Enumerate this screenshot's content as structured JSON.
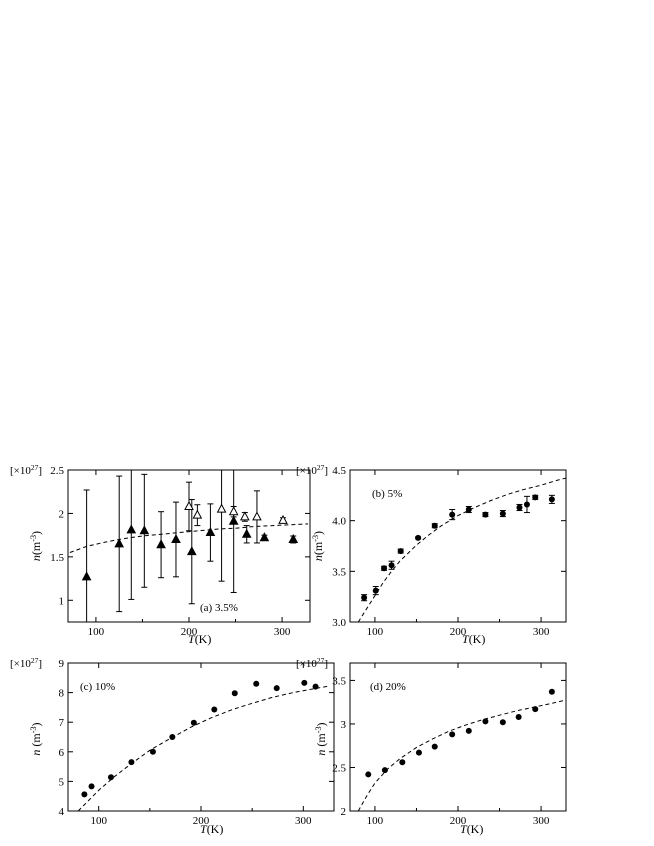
{
  "chart_data": [
    {
      "id": "a",
      "type": "scatter",
      "panel_label": "(a) 3.5%",
      "multiplier": "[×10",
      "multiplier_exp": "27",
      "multiplier_end": "]",
      "ylabel_main": "n",
      "ylabel_unit": "(m",
      "ylabel_exp": "-3",
      "ylabel_end": ")",
      "xlabel_main": "T",
      "xlabel_unit": "(K)",
      "xlim": [
        70,
        330
      ],
      "ylim": [
        0.75,
        2.5
      ],
      "xticks": [
        100,
        200,
        300
      ],
      "xtick_labels": [
        "100",
        "200",
        "300"
      ],
      "yticks": [
        1,
        1.5,
        2,
        2.5
      ],
      "ytick_labels": [
        "1",
        "1.5",
        "2",
        "2.5"
      ],
      "series": [
        {
          "marker": "triangle-filled",
          "x": [
            90,
            125,
            138,
            152,
            170,
            186,
            203,
            223,
            248,
            262,
            281,
            312
          ],
          "y": [
            1.27,
            1.65,
            1.81,
            1.8,
            1.64,
            1.7,
            1.56,
            1.78,
            1.91,
            1.76,
            1.72,
            1.7
          ],
          "err": [
            1.0,
            0.78,
            0.8,
            0.65,
            0.38,
            0.43,
            0.6,
            0.33,
            0.82,
            0.1,
            0.03,
            0.04
          ]
        },
        {
          "marker": "triangle-open",
          "x": [
            200,
            209,
            235,
            248,
            260,
            273,
            301
          ],
          "y": [
            2.08,
            1.98,
            2.05,
            2.02,
            1.96,
            1.96,
            1.92
          ],
          "err": [
            0.28,
            0.12,
            0.83,
            0.06,
            0.05,
            0.3,
            0.03
          ]
        }
      ],
      "fit_curve": {
        "x": [
          72,
          90,
          110,
          130,
          150,
          170,
          190,
          210,
          230,
          250,
          270,
          290,
          310,
          328
        ],
        "y": [
          1.55,
          1.62,
          1.67,
          1.71,
          1.74,
          1.76,
          1.78,
          1.8,
          1.82,
          1.83,
          1.85,
          1.86,
          1.87,
          1.88
        ]
      }
    },
    {
      "id": "b",
      "type": "scatter",
      "panel_label": "(b) 5%",
      "multiplier": "[×10",
      "multiplier_exp": "27",
      "multiplier_end": "]",
      "ylabel_main": "n",
      "ylabel_unit": "(m",
      "ylabel_exp": "-3",
      "ylabel_end": ")",
      "xlabel_main": "T",
      "xlabel_unit": "(K)",
      "xlim": [
        70,
        330
      ],
      "ylim": [
        3.0,
        4.5
      ],
      "xticks": [
        100,
        200,
        300
      ],
      "xtick_labels": [
        "100",
        "200",
        "300"
      ],
      "yticks": [
        3.0,
        3.5,
        4.0,
        4.5
      ],
      "ytick_labels": [
        "3.0",
        "3.5",
        "4.0",
        "4.5"
      ],
      "series": [
        {
          "marker": "circle-filled",
          "x": [
            87,
            101,
            111,
            120,
            131,
            152,
            172,
            193,
            213,
            233,
            254,
            274,
            283,
            293,
            313
          ],
          "y": [
            3.24,
            3.31,
            3.53,
            3.56,
            3.7,
            3.83,
            3.95,
            4.06,
            4.11,
            4.06,
            4.07,
            4.13,
            4.16,
            4.23,
            4.21
          ],
          "err": [
            0.03,
            0.04,
            0.02,
            0.04,
            0.02,
            0.01,
            0.02,
            0.05,
            0.03,
            0.02,
            0.03,
            0.03,
            0.08,
            0.02,
            0.04
          ]
        }
      ],
      "fit_curve": {
        "x": [
          80,
          90,
          100,
          110,
          120,
          130,
          140,
          150,
          165,
          180,
          200,
          220,
          240,
          260,
          280,
          300,
          320,
          330
        ],
        "y": [
          3.0,
          3.13,
          3.26,
          3.39,
          3.5,
          3.6,
          3.68,
          3.76,
          3.86,
          3.95,
          4.05,
          4.13,
          4.2,
          4.26,
          4.31,
          4.35,
          4.4,
          4.42
        ]
      }
    },
    {
      "id": "c",
      "type": "scatter",
      "panel_label": "(c) 10%",
      "multiplier": "[×10",
      "multiplier_exp": "27",
      "multiplier_end": "]",
      "ylabel_main": "n",
      "ylabel_unit": " (m",
      "ylabel_exp": "-3",
      "ylabel_end": ")",
      "xlabel_main": "T",
      "xlabel_unit": "(K)",
      "xlim": [
        70,
        330
      ],
      "ylim": [
        4,
        9
      ],
      "xticks": [
        100,
        200,
        300
      ],
      "xtick_labels": [
        "100",
        "200",
        "300"
      ],
      "yticks": [
        4,
        5,
        6,
        7,
        8,
        9
      ],
      "ytick_labels": [
        "4",
        "5",
        "6",
        "7",
        "8",
        "9"
      ],
      "series": [
        {
          "marker": "circle-filled",
          "x": [
            86,
            93,
            112,
            132,
            153,
            172,
            193,
            213,
            233,
            254,
            274,
            301,
            312
          ],
          "y": [
            4.56,
            4.83,
            5.14,
            5.65,
            6.0,
            6.5,
            6.98,
            7.43,
            7.98,
            8.3,
            8.15,
            8.33,
            8.2
          ],
          "err": [
            0,
            0,
            0,
            0,
            0,
            0,
            0,
            0,
            0,
            0,
            0,
            0,
            0
          ]
        }
      ],
      "fit_curve": {
        "x": [
          80,
          90,
          100,
          115,
          130,
          150,
          170,
          190,
          210,
          230,
          250,
          270,
          290,
          310,
          325
        ],
        "y": [
          4.0,
          4.35,
          4.7,
          5.15,
          5.55,
          6.05,
          6.45,
          6.83,
          7.15,
          7.42,
          7.64,
          7.84,
          8.0,
          8.13,
          8.22
        ]
      }
    },
    {
      "id": "d",
      "type": "scatter",
      "panel_label": "(d) 20%",
      "multiplier": "[×10",
      "multiplier_exp": "27",
      "multiplier_end": "]",
      "ylabel_main": "n",
      "ylabel_unit": " (m",
      "ylabel_exp": "-3",
      "ylabel_end": ")",
      "xlabel_main": "T",
      "xlabel_unit": "(K)",
      "xlim": [
        70,
        330
      ],
      "ylim": [
        2,
        3.7
      ],
      "xticks": [
        100,
        200,
        300
      ],
      "xtick_labels": [
        "100",
        "200",
        "300"
      ],
      "yticks": [
        2,
        2.5,
        3,
        3.5
      ],
      "ytick_labels": [
        "2",
        "2.5",
        "3",
        "3.5"
      ],
      "series": [
        {
          "marker": "circle-filled",
          "x": [
            92,
            112,
            133,
            153,
            172,
            193,
            213,
            233,
            254,
            273,
            293,
            313
          ],
          "y": [
            2.42,
            2.47,
            2.56,
            2.67,
            2.74,
            2.88,
            2.92,
            3.03,
            3.02,
            3.08,
            3.17,
            3.37
          ],
          "err": [
            0,
            0,
            0,
            0,
            0,
            0,
            0,
            0,
            0,
            0,
            0,
            0
          ]
        }
      ],
      "fit_curve": {
        "x": [
          80,
          90,
          100,
          115,
          130,
          150,
          170,
          190,
          210,
          230,
          250,
          270,
          290,
          310,
          328
        ],
        "y": [
          2.0,
          2.17,
          2.32,
          2.48,
          2.6,
          2.73,
          2.83,
          2.92,
          2.99,
          3.05,
          3.1,
          3.15,
          3.19,
          3.23,
          3.27
        ]
      }
    }
  ]
}
